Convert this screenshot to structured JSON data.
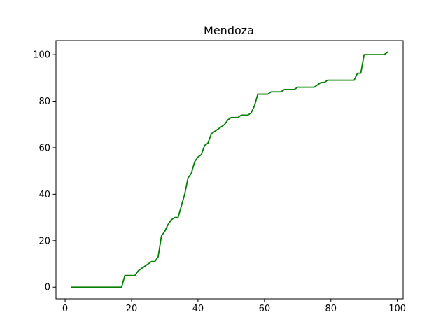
{
  "chart_data": {
    "type": "line",
    "title": "Mendoza",
    "xlabel": "",
    "ylabel": "",
    "xlim": [
      -2.75,
      101.75
    ],
    "ylim": [
      -5.05,
      106.05
    ],
    "xticks": [
      0,
      20,
      40,
      60,
      80,
      100
    ],
    "yticks": [
      0,
      20,
      40,
      60,
      80,
      100
    ],
    "grid": false,
    "series": [
      {
        "color": "#008000",
        "x": [
          2,
          3,
          4,
          5,
          6,
          7,
          8,
          9,
          10,
          11,
          12,
          13,
          14,
          15,
          16,
          17,
          18,
          19,
          20,
          21,
          22,
          23,
          24,
          25,
          26,
          27,
          28,
          29,
          30,
          31,
          32,
          33,
          34,
          35,
          36,
          37,
          38,
          39,
          40,
          41,
          42,
          43,
          44,
          45,
          46,
          47,
          48,
          49,
          50,
          51,
          52,
          53,
          54,
          55,
          56,
          57,
          58,
          59,
          60,
          61,
          62,
          63,
          64,
          65,
          66,
          67,
          68,
          69,
          70,
          71,
          72,
          73,
          74,
          75,
          76,
          77,
          78,
          79,
          80,
          81,
          82,
          83,
          84,
          85,
          86,
          87,
          88,
          89,
          90,
          91,
          92,
          93,
          94,
          95,
          96,
          97
        ],
        "y": [
          0,
          0,
          0,
          0,
          0,
          0,
          0,
          0,
          0,
          0,
          0,
          0,
          0,
          0,
          0,
          0,
          5,
          5,
          5,
          5,
          7,
          8,
          9,
          10,
          11,
          11,
          13,
          22,
          24,
          27,
          29,
          30,
          30,
          35,
          40,
          47,
          49,
          54,
          56,
          57,
          61,
          62,
          66,
          67,
          68,
          69,
          70,
          72,
          73,
          73,
          73,
          74,
          74,
          74,
          75,
          78,
          83,
          83,
          83,
          83,
          84,
          84,
          84,
          84,
          85,
          85,
          85,
          85,
          86,
          86,
          86,
          86,
          86,
          86,
          87,
          88,
          88,
          89,
          89,
          89,
          89,
          89,
          89,
          89,
          89,
          89,
          92,
          92,
          100,
          100,
          100,
          100,
          100,
          100,
          100,
          101
        ]
      }
    ]
  }
}
